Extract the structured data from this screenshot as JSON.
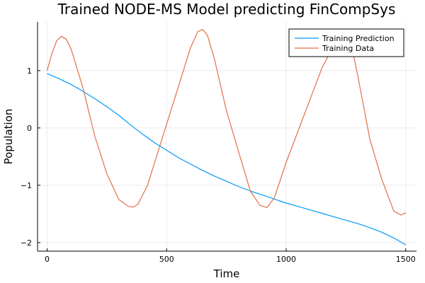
{
  "chart_data": {
    "type": "line",
    "title": "Trained NODE-MS Model predicting FinCompSys",
    "xlabel": "Time",
    "ylabel": "Population",
    "xlim": [
      -40,
      1545
    ],
    "ylim": [
      -2.15,
      1.85
    ],
    "xticks": [
      0,
      500,
      1000,
      1500
    ],
    "xtick_labels": [
      "0",
      "500",
      "1000",
      "1500"
    ],
    "yticks": [
      -2,
      -1,
      0,
      1
    ],
    "ytick_labels": [
      "−2",
      "−1",
      "0",
      "1"
    ],
    "grid": true,
    "legend_position": "top-right",
    "series": [
      {
        "name": "Training Prediction",
        "color": "#009AFA",
        "x": [
          0,
          50,
          100,
          150,
          200,
          250,
          300,
          350,
          400,
          450,
          500,
          550,
          600,
          650,
          700,
          750,
          800,
          850,
          900,
          950,
          1000,
          1050,
          1100,
          1150,
          1200,
          1250,
          1300,
          1350,
          1400,
          1450,
          1500
        ],
        "y": [
          0.95,
          0.86,
          0.76,
          0.64,
          0.51,
          0.37,
          0.22,
          0.05,
          -0.11,
          -0.26,
          -0.39,
          -0.52,
          -0.63,
          -0.74,
          -0.84,
          -0.93,
          -1.02,
          -1.1,
          -1.17,
          -1.24,
          -1.31,
          -1.37,
          -1.43,
          -1.49,
          -1.55,
          -1.61,
          -1.67,
          -1.74,
          -1.82,
          -1.92,
          -2.04
        ]
      },
      {
        "name": "Training Data",
        "color": "#E26F46",
        "x": [
          0,
          20,
          40,
          60,
          80,
          100,
          150,
          200,
          250,
          300,
          340,
          360,
          380,
          420,
          480,
          540,
          600,
          630,
          650,
          670,
          700,
          750,
          800,
          850,
          890,
          920,
          950,
          1000,
          1050,
          1100,
          1150,
          1200,
          1230,
          1250,
          1270,
          1300,
          1350,
          1400,
          1450,
          1480,
          1500
        ],
        "y": [
          1.0,
          1.3,
          1.52,
          1.6,
          1.55,
          1.38,
          0.7,
          -0.15,
          -0.8,
          -1.25,
          -1.37,
          -1.38,
          -1.33,
          -1.0,
          -0.2,
          0.6,
          1.4,
          1.68,
          1.72,
          1.62,
          1.2,
          0.3,
          -0.4,
          -1.1,
          -1.35,
          -1.39,
          -1.22,
          -0.6,
          -0.05,
          0.5,
          1.05,
          1.45,
          1.62,
          1.65,
          1.5,
          0.9,
          -0.2,
          -0.9,
          -1.45,
          -1.52,
          -1.48
        ]
      }
    ]
  }
}
